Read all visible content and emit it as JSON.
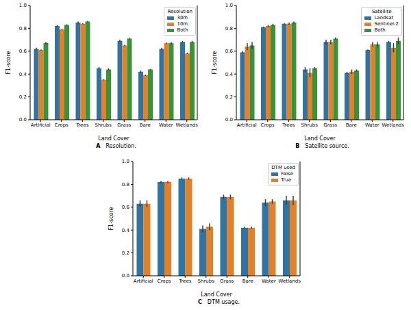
{
  "chart_data": [
    {
      "type": "bar",
      "panel": "A",
      "title": "Resolution.",
      "x_label": "Land Cover",
      "y_label": "F1-score",
      "categories": [
        "Artificial",
        "Crops",
        "Trees",
        "Shrubs",
        "Grass",
        "Bare",
        "Water",
        "Wetlands"
      ],
      "series": [
        {
          "name": "30m",
          "color": "#3274a1",
          "values": [
            0.62,
            0.82,
            0.85,
            0.45,
            0.69,
            0.42,
            0.62,
            0.68
          ],
          "errors": [
            0.01,
            0.01,
            0.01,
            0.01,
            0.01,
            0.01,
            0.01,
            0.01
          ]
        },
        {
          "name": "10m",
          "color": "#e1812c",
          "values": [
            0.61,
            0.79,
            0.84,
            0.35,
            0.65,
            0.39,
            0.67,
            0.58
          ],
          "errors": [
            0.005,
            0.005,
            0.005,
            0.005,
            0.005,
            0.005,
            0.005,
            0.005
          ]
        },
        {
          "name": "Both",
          "color": "#3a923a",
          "values": [
            0.67,
            0.83,
            0.86,
            0.44,
            0.71,
            0.44,
            0.67,
            0.68
          ],
          "errors": [
            0.01,
            0.005,
            0.005,
            0.01,
            0.005,
            0.005,
            0.01,
            0.01
          ]
        }
      ],
      "ylim": [
        0,
        1.0
      ],
      "yticks": [
        {
          "value": 0,
          "label": "0.0"
        },
        0.2,
        0.4,
        0.6,
        0.8,
        {
          "value": 1.0,
          "label": "1.0"
        }
      ],
      "legend": "upper right",
      "legend_title": "Resolution"
    },
    {
      "type": "bar",
      "panel": "B",
      "title": "Satellite source.",
      "x_label": "Land Cover",
      "y_label": "F1-score",
      "categories": [
        "Artificial",
        "Crops",
        "Trees",
        "Shrubs",
        "Grass",
        "Bare",
        "Water",
        "Wetlands"
      ],
      "series": [
        {
          "name": "Landsat",
          "color": "#3274a1",
          "values": [
            0.59,
            0.81,
            0.84,
            0.44,
            0.68,
            0.41,
            0.61,
            0.68
          ],
          "errors": [
            0.01,
            0.005,
            0.005,
            0.02,
            0.02,
            0.01,
            0.005,
            0.01
          ]
        },
        {
          "name": "Sentinel-2",
          "color": "#e1812c",
          "values": [
            0.64,
            0.82,
            0.84,
            0.41,
            0.68,
            0.42,
            0.66,
            0.63
          ],
          "errors": [
            0.03,
            0.01,
            0.01,
            0.04,
            0.02,
            0.02,
            0.02,
            0.04
          ]
        },
        {
          "name": "Both",
          "color": "#3a923a",
          "values": [
            0.65,
            0.83,
            0.85,
            0.45,
            0.71,
            0.43,
            0.66,
            0.69
          ],
          "errors": [
            0.03,
            0.01,
            0.01,
            0.01,
            0.01,
            0.01,
            0.02,
            0.03
          ]
        }
      ],
      "ylim": [
        0,
        1.0
      ],
      "yticks": [
        {
          "value": 0,
          "label": "0.0"
        },
        0.2,
        0.4,
        0.6,
        0.8,
        {
          "value": 1.0,
          "label": "1.0"
        }
      ],
      "legend": "upper right",
      "legend_title": "Satellite"
    },
    {
      "type": "bar",
      "panel": "C",
      "title": "DTM usage.",
      "x_label": "Land Cover",
      "y_label": "F1-score",
      "categories": [
        "Artificial",
        "Crops",
        "Trees",
        "Shrubs",
        "Grass",
        "Bare",
        "Water",
        "Wetlands"
      ],
      "series": [
        {
          "name": "False",
          "color": "#3274a1",
          "values": [
            0.63,
            0.82,
            0.85,
            0.41,
            0.69,
            0.42,
            0.64,
            0.66
          ],
          "errors": [
            0.03,
            0.01,
            0.01,
            0.03,
            0.02,
            0.01,
            0.03,
            0.04
          ]
        },
        {
          "name": "True",
          "color": "#e1812c",
          "values": [
            0.63,
            0.82,
            0.85,
            0.43,
            0.69,
            0.42,
            0.65,
            0.66
          ],
          "errors": [
            0.03,
            0.01,
            0.01,
            0.03,
            0.02,
            0.01,
            0.02,
            0.04
          ]
        }
      ],
      "ylim": [
        0,
        1.0
      ],
      "yticks": [
        {
          "value": 0,
          "label": "0.0"
        },
        0.2,
        0.4,
        0.6,
        0.8,
        {
          "value": 1.0,
          "label": "1.0"
        }
      ],
      "legend": "upper right",
      "legend_title": "DTM used"
    }
  ]
}
